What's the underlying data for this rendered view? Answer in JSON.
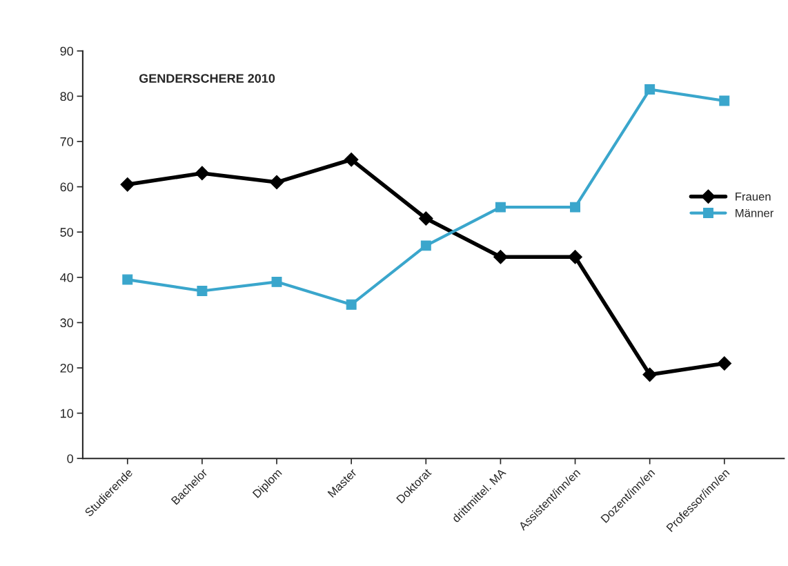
{
  "chart_data": {
    "type": "line",
    "title": "GENDERSCHERE 2010",
    "categories": [
      "Studierende",
      "Bachelor",
      "Diplom",
      "Master",
      "Doktorat",
      "drittmittel. MA",
      "Assistent/inn/en",
      "Dozent/inn/en",
      "Professor/inn/en"
    ],
    "series": [
      {
        "name": "Frauen",
        "color": "#000000",
        "marker": "diamond",
        "values": [
          60.5,
          63,
          61,
          66,
          53,
          44.5,
          44.5,
          18.5,
          21
        ]
      },
      {
        "name": "Männer",
        "color": "#3aa6cc",
        "marker": "square",
        "values": [
          39.5,
          37,
          39,
          34,
          47,
          55.5,
          55.5,
          81.5,
          79
        ]
      }
    ],
    "ylim": [
      0,
      90
    ],
    "yticks": [
      0,
      10,
      20,
      30,
      40,
      50,
      60,
      70,
      80,
      90
    ],
    "grid": false,
    "legend": "right"
  }
}
